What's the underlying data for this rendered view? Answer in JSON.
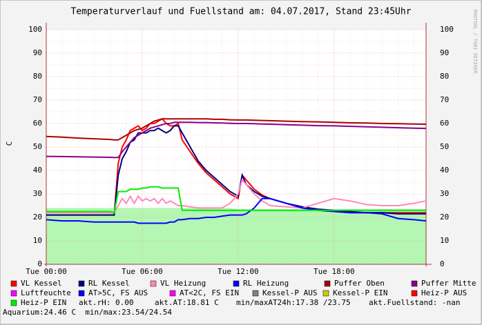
{
  "chart_data": {
    "type": "line",
    "title": "Temperaturverlauf und Fuellstand am: 04.07.2017, Stand 23:45Uhr",
    "ylabel": "C",
    "watermark": "RRDTOOL / TOBI OETIKER",
    "x": [
      0,
      1,
      2,
      3,
      4,
      4.25,
      4.5,
      4.75,
      5,
      5.25,
      5.5,
      5.75,
      6,
      6.25,
      6.5,
      6.75,
      7,
      7.25,
      7.5,
      7.75,
      8,
      8.25,
      8.5,
      9,
      9.5,
      10,
      10.5,
      11,
      11.5,
      12,
      12.25,
      12.5,
      13,
      13.5,
      14,
      15,
      16,
      17,
      18,
      19,
      20,
      21,
      22,
      23,
      23.75
    ],
    "xlim": [
      0,
      23.75
    ],
    "xticks": [
      {
        "value": 0,
        "label": "Tue 00:00"
      },
      {
        "value": 6,
        "label": "Tue 06:00"
      },
      {
        "value": 12,
        "label": "Tue 12:00"
      },
      {
        "value": 18,
        "label": "Tue 18:00"
      }
    ],
    "ylim": [
      0,
      100
    ],
    "yticks": [
      0,
      10,
      20,
      30,
      40,
      50,
      60,
      70,
      80,
      90,
      100
    ],
    "grid": true,
    "area": {
      "color": "#b3f7b3",
      "values": [
        24,
        24,
        24,
        24,
        24,
        24,
        24,
        24,
        24,
        24,
        24,
        24,
        24,
        24,
        24,
        24,
        24,
        24,
        24,
        24,
        24,
        24,
        24,
        24,
        24,
        24,
        24,
        24,
        24,
        23.5,
        23.5,
        23.5,
        23.5,
        23.5,
        23.5,
        23.5,
        23.5,
        23.5,
        23.5,
        23.5,
        23.5,
        23.5,
        23.5,
        23.5,
        23.5
      ]
    },
    "series": [
      {
        "name": "VL Kessel",
        "color": "#ff0000",
        "values": [
          21,
          21,
          21,
          21,
          21,
          21,
          43,
          50,
          53,
          57,
          58,
          59,
          57,
          58,
          60,
          60,
          61,
          62,
          60,
          59,
          59,
          60,
          53,
          48,
          43,
          39,
          36,
          33,
          30,
          28,
          38,
          36,
          32,
          29.5,
          28,
          26,
          24,
          23,
          22.5,
          22,
          22,
          22,
          22,
          22,
          22
        ]
      },
      {
        "name": "RL Kessel",
        "color": "#000080",
        "values": [
          21,
          21,
          21,
          21,
          21,
          21,
          38,
          45,
          48,
          52,
          53,
          56,
          56,
          56,
          57,
          57,
          58,
          57,
          56,
          57,
          59,
          59,
          56,
          50,
          44,
          40,
          37,
          34,
          31,
          29,
          38,
          34,
          31,
          29,
          28,
          26,
          24.5,
          23.5,
          23,
          22.5,
          22,
          22,
          21.5,
          21.5,
          21.5
        ]
      },
      {
        "name": "VL Heizung",
        "color": "#ff88bb",
        "values": [
          22,
          22,
          22,
          22,
          22,
          22,
          25,
          28,
          26,
          29,
          26,
          29,
          27,
          28,
          27,
          28,
          26,
          28,
          26,
          27,
          26,
          25,
          25,
          24.5,
          24,
          24,
          24,
          24,
          26,
          30,
          36,
          34,
          30,
          27,
          25,
          24.5,
          24,
          26,
          28,
          27,
          25.5,
          25,
          25,
          26,
          27
        ]
      },
      {
        "name": "RL Heizung",
        "color": "#0000ff",
        "values": [
          19,
          18.5,
          18.5,
          18,
          18,
          18,
          18,
          18,
          18,
          18,
          18,
          17.5,
          17.5,
          17.5,
          17.5,
          17.5,
          17.5,
          17.5,
          17.5,
          18,
          18,
          19,
          19,
          19.5,
          19.5,
          20,
          20,
          20.5,
          21,
          21,
          21,
          21.5,
          24,
          28,
          28,
          26,
          24,
          23,
          22.5,
          22,
          22,
          21.5,
          19.5,
          19,
          18.5
        ]
      },
      {
        "name": "Puffer Oben",
        "color": "#aa0000",
        "values": [
          54.5,
          54.2,
          53.8,
          53.5,
          53.2,
          53,
          53,
          54,
          55,
          56,
          57,
          57.5,
          58,
          59,
          60,
          61,
          61.5,
          62,
          62,
          62,
          62,
          62,
          62,
          62,
          62,
          62,
          61.8,
          61.8,
          61.6,
          61.5,
          61.5,
          61.5,
          61.4,
          61.3,
          61.2,
          61,
          60.8,
          60.7,
          60.5,
          60.3,
          60.2,
          60,
          59.9,
          59.8,
          59.7
        ]
      },
      {
        "name": "Puffer Mitte",
        "color": "#880088",
        "values": [
          46,
          45.9,
          45.8,
          45.7,
          45.6,
          45.5,
          45.5,
          48,
          50,
          52,
          54,
          55,
          56,
          57,
          58,
          58.5,
          59,
          59.5,
          60,
          60,
          60.5,
          60.5,
          60.5,
          60.5,
          60.4,
          60.4,
          60.3,
          60.2,
          60.1,
          60,
          60,
          60,
          59.9,
          59.8,
          59.7,
          59.5,
          59.3,
          59.1,
          59,
          58.8,
          58.6,
          58.4,
          58.2,
          58,
          57.9
        ]
      },
      {
        "name": "Luftfeuchte",
        "color": "#ff00ff"
      },
      {
        "name": "AT>5C, FS AUS",
        "color": "#0000ff"
      },
      {
        "name": "AT<2C, FS EIN",
        "color": "#ff00ff"
      },
      {
        "name": "Kessel-P AUS",
        "color": "#808080"
      },
      {
        "name": "Kessel-P EIN",
        "color": "#cccc00"
      },
      {
        "name": "Heiz-P AUS",
        "color": "#ff0000"
      },
      {
        "name": "Heiz-P EIN",
        "color": "#00ee00",
        "values": [
          22.5,
          22.5,
          22.5,
          22.5,
          22.5,
          22,
          31,
          31,
          31,
          32,
          32,
          32,
          32.5,
          32.5,
          33,
          33,
          33,
          32.5,
          32.5,
          32.5,
          32.5,
          32.5,
          23,
          23,
          23,
          23,
          23,
          23,
          23,
          23,
          23,
          23,
          23,
          23,
          23,
          23,
          23,
          23,
          23,
          23,
          23,
          23,
          23,
          23,
          23
        ]
      }
    ],
    "info": [
      "akt.rH: 0.00",
      "akt.AT:18.81 C",
      "min/maxAT24h:17.38 /23.75",
      "akt.Fuellstand: -nan",
      "Aquarium:24.46 C  min/max:23.54/24.54"
    ]
  }
}
